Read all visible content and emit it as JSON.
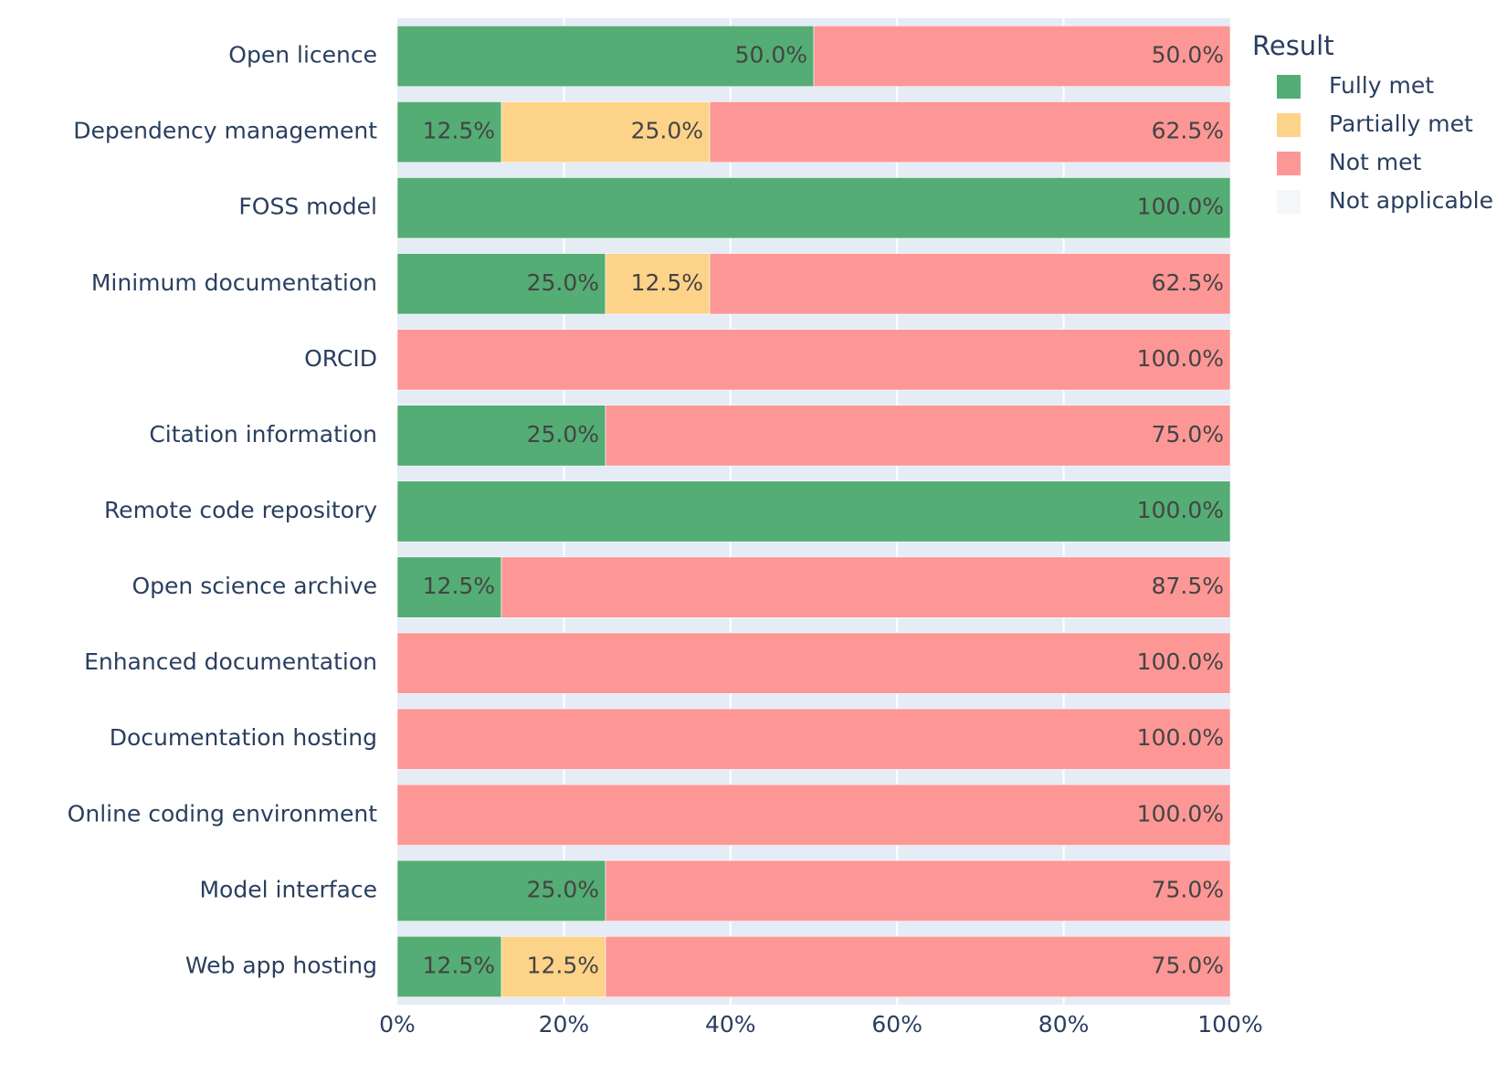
{
  "chart_data": {
    "type": "bar",
    "orientation": "horizontal",
    "barmode": "stack",
    "categories": [
      "Open licence",
      "Dependency management",
      "FOSS model",
      "Minimum documentation",
      "ORCID",
      "Citation information",
      "Remote code repository",
      "Open science archive",
      "Enhanced documentation",
      "Documentation hosting",
      "Online coding environment",
      "Model interface",
      "Web app hosting"
    ],
    "series": [
      {
        "name": "Fully met",
        "color": "#54ad74",
        "values": [
          50.0,
          12.5,
          100.0,
          25.0,
          0,
          25.0,
          100.0,
          12.5,
          0,
          0,
          0,
          25.0,
          12.5
        ],
        "labels": [
          "50.0%",
          "12.5%",
          "",
          "25.0%",
          "",
          "25.0%",
          "",
          "12.5%",
          "",
          "",
          "",
          "25.0%",
          "12.5%"
        ]
      },
      {
        "name": "Partially met",
        "color": "#fdd38a",
        "values": [
          0,
          25.0,
          0,
          12.5,
          0,
          0,
          0,
          0,
          0,
          0,
          0,
          0,
          12.5
        ],
        "labels": [
          "",
          "25.0%",
          "",
          "12.5%",
          "",
          "",
          "",
          "",
          "",
          "",
          "",
          "",
          "12.5%"
        ]
      },
      {
        "name": "Not met",
        "color": "#fd9796",
        "values": [
          50.0,
          62.5,
          0,
          62.5,
          100.0,
          75.0,
          0,
          87.5,
          100.0,
          100.0,
          100.0,
          75.0,
          75.0
        ],
        "labels": [
          "50.0%",
          "62.5%",
          "",
          "62.5%",
          "100.0%",
          "75.0%",
          "",
          "87.5%",
          "100.0%",
          "100.0%",
          "100.0%",
          "75.0%",
          "75.0%"
        ]
      },
      {
        "name": "Not applicable",
        "color": "#f4f6f8",
        "values": [
          0,
          0,
          0,
          0,
          0,
          0,
          0,
          0,
          0,
          0,
          0,
          0,
          0
        ],
        "labels": [
          "",
          "",
          "",
          "",
          "",
          "",
          "",
          "",
          "",
          "",
          "",
          "",
          ""
        ]
      }
    ],
    "full_bar_labels": [
      "",
      "",
      "100.0%",
      "",
      "",
      "",
      "100.0%",
      "",
      "",
      "",
      "",
      "",
      ""
    ],
    "xlim": [
      0,
      100
    ],
    "x_ticks": [
      0,
      20,
      40,
      60,
      80,
      100
    ],
    "x_tick_labels": [
      "0%",
      "20%",
      "40%",
      "60%",
      "80%",
      "100%"
    ],
    "grid": true,
    "legend": {
      "title": "Result",
      "placement": "top-right"
    },
    "colors": {
      "plot_background": "#e5ecf6",
      "grid": "#ffffff",
      "text": "#2a3f5f"
    }
  }
}
